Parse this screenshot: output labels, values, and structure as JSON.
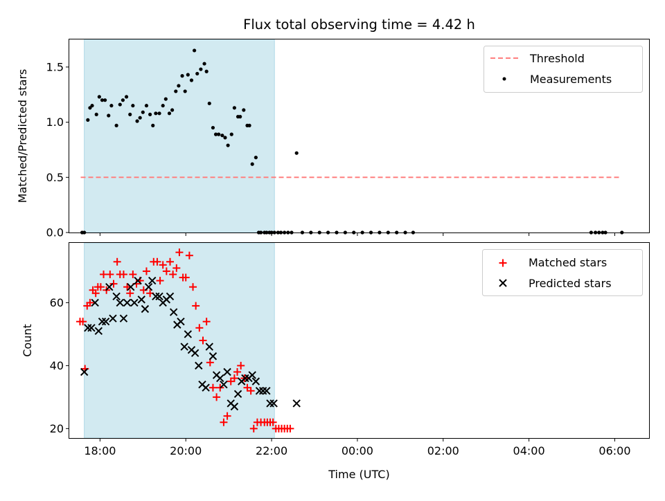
{
  "colors": {
    "shade": "#add8e6",
    "threshold": "#ff7f7f",
    "measurement": "#000000",
    "matched": "#ff0000",
    "predicted": "#000000"
  },
  "chart_data": [
    {
      "type": "scatter",
      "title": "Flux total observing time = 4.42 h",
      "xlabel": "",
      "ylabel": "Matched/Predicted stars",
      "xlim": [
        "17:17",
        "06:48"
      ],
      "ylim": [
        0,
        1.75
      ],
      "yticks": [
        0.0,
        0.5,
        1.0,
        1.5
      ],
      "ytick_labels": [
        "0.0",
        "0.5",
        "1.0",
        "1.5"
      ],
      "grid": false,
      "legend": "top-right",
      "shaded_region": {
        "x0": "17:38",
        "x1": "22:04"
      },
      "threshold": {
        "name": "Threshold",
        "y": 0.5,
        "x0": "17:33",
        "x1": "06:07"
      },
      "measurements": {
        "name": "Measurements",
        "x": [
          "17:35",
          "17:38",
          "17:43",
          "17:46",
          "17:49",
          "17:55",
          "17:59",
          "18:03",
          "18:07",
          "18:12",
          "18:16",
          "18:23",
          "18:28",
          "18:32",
          "18:37",
          "18:42",
          "18:46",
          "18:52",
          "18:56",
          "19:00",
          "19:05",
          "19:10",
          "19:14",
          "19:18",
          "19:23",
          "19:28",
          "19:32",
          "19:37",
          "19:41",
          "19:46",
          "19:50",
          "19:55",
          "19:59",
          "20:03",
          "20:08",
          "20:12",
          "20:16",
          "20:21",
          "20:26",
          "20:29",
          "20:33",
          "20:38",
          "20:42",
          "20:46",
          "20:51",
          "20:55",
          "20:59",
          "21:04",
          "21:08",
          "21:13",
          "21:16",
          "21:21",
          "21:26",
          "21:29",
          "21:33",
          "21:38",
          "21:42",
          "21:45",
          "21:50",
          "21:53",
          "21:57",
          "22:00",
          "22:04",
          "22:09",
          "22:13",
          "22:18",
          "22:23",
          "22:28",
          "22:35"
        ],
        "y": [
          0,
          0,
          1.02,
          1.13,
          1.15,
          1.07,
          1.23,
          1.2,
          1.2,
          1.06,
          1.15,
          0.97,
          1.16,
          1.2,
          1.23,
          1.07,
          1.15,
          1.01,
          1.04,
          1.09,
          1.15,
          1.07,
          0.97,
          1.08,
          1.08,
          1.15,
          1.21,
          1.08,
          1.11,
          1.28,
          1.33,
          1.42,
          1.28,
          1.43,
          1.38,
          1.65,
          1.44,
          1.48,
          1.53,
          1.46,
          1.17,
          0.95,
          0.89,
          0.89,
          0.88,
          0.86,
          0.79,
          0.89,
          1.13,
          1.05,
          1.05,
          1.11,
          0.97,
          0.97,
          0.62,
          0.68,
          0,
          0,
          0,
          0,
          0,
          0,
          0,
          0,
          0,
          0,
          0,
          0,
          0.72
        ]
      },
      "measurements_zero": {
        "x": [
          "22:43",
          "22:55",
          "23:07",
          "23:19",
          "23:31",
          "23:43",
          "23:55",
          "00:07",
          "00:19",
          "00:31",
          "00:43",
          "00:55",
          "01:07",
          "01:18",
          "05:27",
          "05:33",
          "05:38",
          "05:43",
          "05:47",
          "06:10"
        ],
        "y": [
          0,
          0,
          0,
          0,
          0,
          0,
          0,
          0,
          0,
          0,
          0,
          0,
          0,
          0,
          0,
          0,
          0,
          0,
          0,
          0
        ]
      }
    },
    {
      "type": "scatter",
      "title": "",
      "xlabel": "Time (UTC)",
      "ylabel": "Count",
      "xlim": [
        "17:17",
        "06:48"
      ],
      "ylim": [
        17,
        79
      ],
      "yticks": [
        20,
        40,
        60
      ],
      "ytick_labels": [
        "20",
        "40",
        "60"
      ],
      "xticks": [
        "18:00",
        "20:00",
        "22:00",
        "00:00",
        "02:00",
        "04:00",
        "06:00"
      ],
      "xtick_labels": [
        "18:00",
        "20:00",
        "22:00",
        "00:00",
        "02:00",
        "04:00",
        "06:00"
      ],
      "grid": false,
      "legend": "top-right",
      "shaded_region": {
        "x0": "17:38",
        "x1": "22:04"
      },
      "series": [
        {
          "name": "Matched stars",
          "marker": "plus",
          "x": [
            "17:32",
            "17:36",
            "17:39",
            "17:42",
            "17:46",
            "17:50",
            "17:54",
            "17:57",
            "18:01",
            "18:05",
            "18:09",
            "18:14",
            "18:19",
            "18:24",
            "18:28",
            "18:33",
            "18:38",
            "18:42",
            "18:46",
            "18:51",
            "18:56",
            "19:01",
            "19:05",
            "19:10",
            "19:15",
            "19:20",
            "19:24",
            "19:28",
            "19:33",
            "19:38",
            "19:42",
            "19:47",
            "19:51",
            "19:56",
            "20:00",
            "20:05",
            "20:10",
            "20:14",
            "20:19",
            "20:24",
            "20:29",
            "20:34",
            "20:38",
            "20:43",
            "20:48",
            "20:53",
            "20:58",
            "21:03",
            "21:08",
            "21:12",
            "21:17",
            "21:22",
            "21:26",
            "21:31",
            "21:35",
            "21:40",
            "21:45",
            "21:50",
            "21:54",
            "21:58",
            "22:02",
            "22:06",
            "22:10",
            "22:14",
            "22:18",
            "22:22",
            "22:26"
          ],
          "y": [
            54,
            54,
            39,
            59,
            60,
            64,
            63,
            65,
            65,
            69,
            64,
            69,
            66,
            73,
            69,
            69,
            65,
            63,
            69,
            66,
            67,
            64,
            70,
            63,
            73,
            73,
            67,
            72,
            70,
            73,
            69,
            71,
            76,
            68,
            68,
            75,
            65,
            59,
            52,
            48,
            54,
            41,
            33,
            30,
            33,
            22,
            24,
            35,
            36,
            38,
            40,
            36,
            33,
            32,
            20,
            22,
            22,
            22,
            22,
            22,
            22,
            20,
            20,
            20,
            20,
            20,
            20
          ]
        },
        {
          "name": "Predicted stars",
          "marker": "x",
          "x": [
            "17:38",
            "17:43",
            "17:48",
            "17:53",
            "17:58",
            "18:03",
            "18:08",
            "18:13",
            "18:18",
            "18:23",
            "18:28",
            "18:33",
            "18:38",
            "18:43",
            "18:48",
            "18:53",
            "18:58",
            "19:03",
            "19:08",
            "19:13",
            "19:18",
            "19:23",
            "19:28",
            "19:33",
            "19:38",
            "19:43",
            "19:48",
            "19:53",
            "19:58",
            "20:03",
            "20:08",
            "20:13",
            "20:18",
            "20:23",
            "20:28",
            "20:33",
            "20:38",
            "20:43",
            "20:48",
            "20:53",
            "20:58",
            "21:03",
            "21:08",
            "21:13",
            "21:18",
            "21:23",
            "21:28",
            "21:33",
            "21:38",
            "21:43",
            "21:48",
            "21:53",
            "21:58",
            "22:03",
            "22:35"
          ],
          "y": [
            38,
            52,
            52,
            60,
            51,
            54,
            54,
            65,
            55,
            62,
            60,
            55,
            60,
            65,
            60,
            67,
            61,
            58,
            65,
            67,
            62,
            62,
            60,
            61,
            62,
            57,
            53,
            54,
            46,
            50,
            45,
            44,
            40,
            34,
            33,
            46,
            43,
            37,
            36,
            34,
            38,
            28,
            27,
            31,
            35,
            36,
            36,
            37,
            35,
            32,
            32,
            32,
            28,
            28,
            28
          ]
        }
      ]
    }
  ]
}
